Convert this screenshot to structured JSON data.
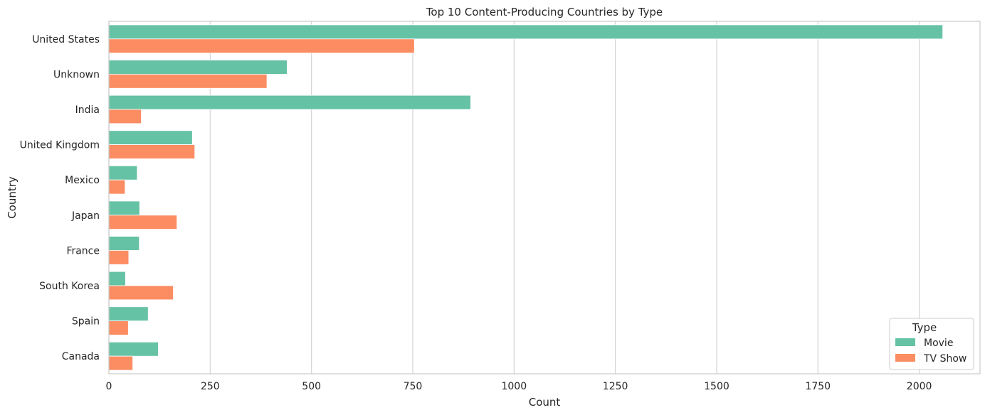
{
  "chart_data": {
    "type": "bar",
    "orientation": "horizontal",
    "title": "Top 10 Content-Producing Countries by Type",
    "xlabel": "Count",
    "ylabel": "Country",
    "categories": [
      "United States",
      "Unknown",
      "India",
      "United Kingdom",
      "Mexico",
      "Japan",
      "France",
      "South Korea",
      "Spain",
      "Canada"
    ],
    "series": [
      {
        "name": "Movie",
        "color": "#66c2a5",
        "values": [
          2058,
          440,
          893,
          206,
          70,
          76,
          75,
          41,
          97,
          122
        ]
      },
      {
        "name": "TV Show",
        "color": "#fc8d62",
        "values": [
          754,
          390,
          80,
          212,
          40,
          168,
          49,
          159,
          48,
          59
        ]
      }
    ],
    "xlim": [
      0,
      2150
    ],
    "xticks": [
      0,
      250,
      500,
      750,
      1000,
      1250,
      1500,
      1750,
      2000
    ],
    "grid": "vertical",
    "legend": {
      "title": "Type",
      "placement": "lower-right"
    }
  }
}
